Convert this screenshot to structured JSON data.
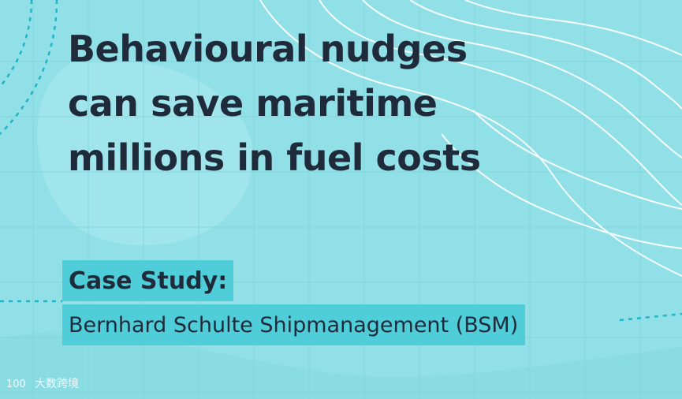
{
  "headline": {
    "lines": [
      "Behavioural nudges",
      "can save maritime",
      "millions in fuel costs"
    ]
  },
  "case_study": {
    "label": "Case Study:",
    "company": "Bernhard Schulte Shipmanagement (BSM)"
  },
  "watermark": {
    "logo_text": "100",
    "text": "大数跨境"
  },
  "colors": {
    "background": "#92e0e7",
    "highlight": "#4fcdd9",
    "text": "#1f2b3a",
    "grid": "#7fd3dc",
    "dashed": "#1fb5c6",
    "contour": "#ffffff"
  }
}
